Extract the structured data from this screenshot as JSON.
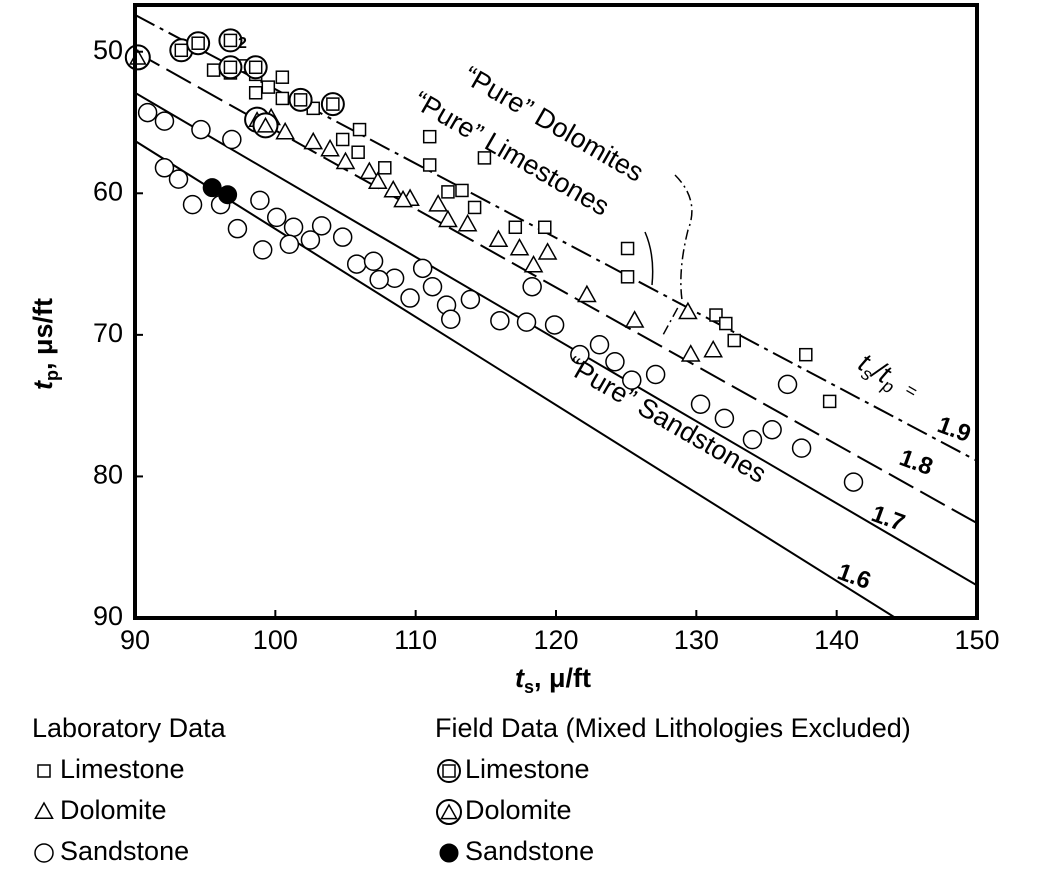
{
  "chart_data": {
    "type": "scatter",
    "xlabel": [
      "t",
      "s",
      ", μ/ft"
    ],
    "ylabel": [
      "t",
      "p",
      ", μs/ft"
    ],
    "xlim": [
      90,
      150
    ],
    "xticks": [
      90,
      100,
      110,
      120,
      130,
      140,
      150
    ],
    "ylim": [
      46.7,
      90
    ],
    "yticks": [
      50,
      60,
      70,
      80,
      90
    ],
    "y_inverted": true,
    "annotations": [
      "“Pure” Dolomites",
      "“Pure” Limestones",
      "“Pure” Sandstones",
      "2"
    ],
    "ratio_label": [
      "t",
      "s",
      "/t",
      "p",
      "="
    ],
    "ratio_lines": [
      {
        "label": "1.6",
        "dash": "solid",
        "x": [
          90,
          144.2
        ],
        "values": [
          56.3,
          90
        ]
      },
      {
        "label": "1.7",
        "dash": "solid",
        "x": [
          90,
          150
        ],
        "values": [
          52.9,
          87.7
        ]
      },
      {
        "label": "1.8",
        "dash": "long",
        "x": [
          90,
          150
        ],
        "values": [
          50,
          83.3
        ]
      },
      {
        "label": "1.9",
        "dash": "dashdot",
        "x": [
          90,
          150
        ],
        "values": [
          47.4,
          78.9
        ]
      }
    ],
    "legend_groups": [
      "Laboratory Data",
      "Field Data (Mixed Lithologies Excluded)"
    ],
    "series": [
      {
        "name": "Limestone",
        "group": 0,
        "marker": "square",
        "x": [
          93.2,
          94.4,
          95.6,
          96.8,
          97.7,
          98.6,
          98.6,
          99.5,
          100.5,
          100.5,
          101.8,
          102.7,
          103.9,
          104.8,
          106,
          105.9,
          107.8,
          111,
          111,
          112.3,
          113.3,
          114.2,
          114.9,
          117.1,
          119.2,
          125.1,
          125.1,
          131.4,
          132.1,
          132.7,
          137.8,
          139.5
        ],
        "values": [
          49.9,
          49.5,
          51.3,
          51.5,
          51,
          51.6,
          52.9,
          52.5,
          51.8,
          53.3,
          53.3,
          54,
          53.7,
          56.2,
          55.5,
          57.1,
          58.2,
          56,
          58,
          59.9,
          59.8,
          61,
          57.5,
          62.4,
          62.4,
          63.9,
          65.9,
          68.6,
          69.2,
          70.4,
          71.4,
          74.7
        ]
      },
      {
        "name": "Dolomite",
        "group": 0,
        "marker": "triangle",
        "x": [
          99.7,
          100.7,
          102.7,
          103.9,
          105,
          106.7,
          107.3,
          108.4,
          109.6,
          111.6,
          112.3,
          113.7,
          115.9,
          117.4,
          118.4,
          119.4,
          122.2,
          125.6,
          129.6,
          131.2,
          129.4,
          109.1
        ],
        "values": [
          54.7,
          55.7,
          56.4,
          56.9,
          57.8,
          58.5,
          59.2,
          59.8,
          60.4,
          60.8,
          61.9,
          62.2,
          63.3,
          63.9,
          65.1,
          64.2,
          67.2,
          69,
          71.4,
          71.1,
          68.4,
          60.5
        ]
      },
      {
        "name": "Sandstone",
        "group": 0,
        "marker": "circle",
        "x": [
          90.9,
          92.1,
          94.7,
          96.9,
          92.1,
          93.1,
          94.1,
          96.1,
          97.3,
          98.9,
          99.1,
          100.1,
          101.3,
          102.5,
          103.3,
          104.8,
          105.8,
          107,
          108.5,
          109.6,
          110.5,
          111.2,
          112.2,
          113.9,
          116,
          117.9,
          118.3,
          119.9,
          121.7,
          123.1,
          124.2,
          125.4,
          127.1,
          130.3,
          132,
          134,
          135.4,
          136.5,
          137.5,
          141.2,
          101,
          107.4,
          112.5
        ],
        "values": [
          54.3,
          54.9,
          55.5,
          56.2,
          58.2,
          59,
          60.8,
          60.8,
          62.5,
          60.5,
          64,
          61.7,
          62.4,
          63.3,
          62.3,
          63.1,
          65,
          64.8,
          66,
          67.4,
          65.3,
          66.6,
          67.9,
          67.5,
          69,
          69.1,
          66.6,
          69.3,
          71.4,
          70.7,
          71.9,
          73.2,
          72.8,
          74.9,
          75.9,
          77.4,
          76.7,
          73.5,
          78,
          80.4,
          63.6,
          66.1,
          68.9
        ]
      },
      {
        "name": "Limestone",
        "group": 1,
        "marker": "ring-square",
        "x": [
          93.3,
          94.5,
          96.8,
          96.8,
          98.6,
          101.8,
          104.1
        ],
        "values": [
          49.9,
          49.4,
          49.2,
          51.1,
          51.1,
          53.4,
          53.7
        ]
      },
      {
        "name": "Dolomite",
        "group": 1,
        "marker": "ring-triangle",
        "x": [
          90.2,
          98.7,
          99.3
        ],
        "values": [
          50.4,
          54.8,
          55.2
        ]
      },
      {
        "name": "Sandstone",
        "group": 1,
        "marker": "dot",
        "x": [
          95.5,
          96.6
        ],
        "values": [
          59.6,
          60.1
        ]
      }
    ]
  }
}
